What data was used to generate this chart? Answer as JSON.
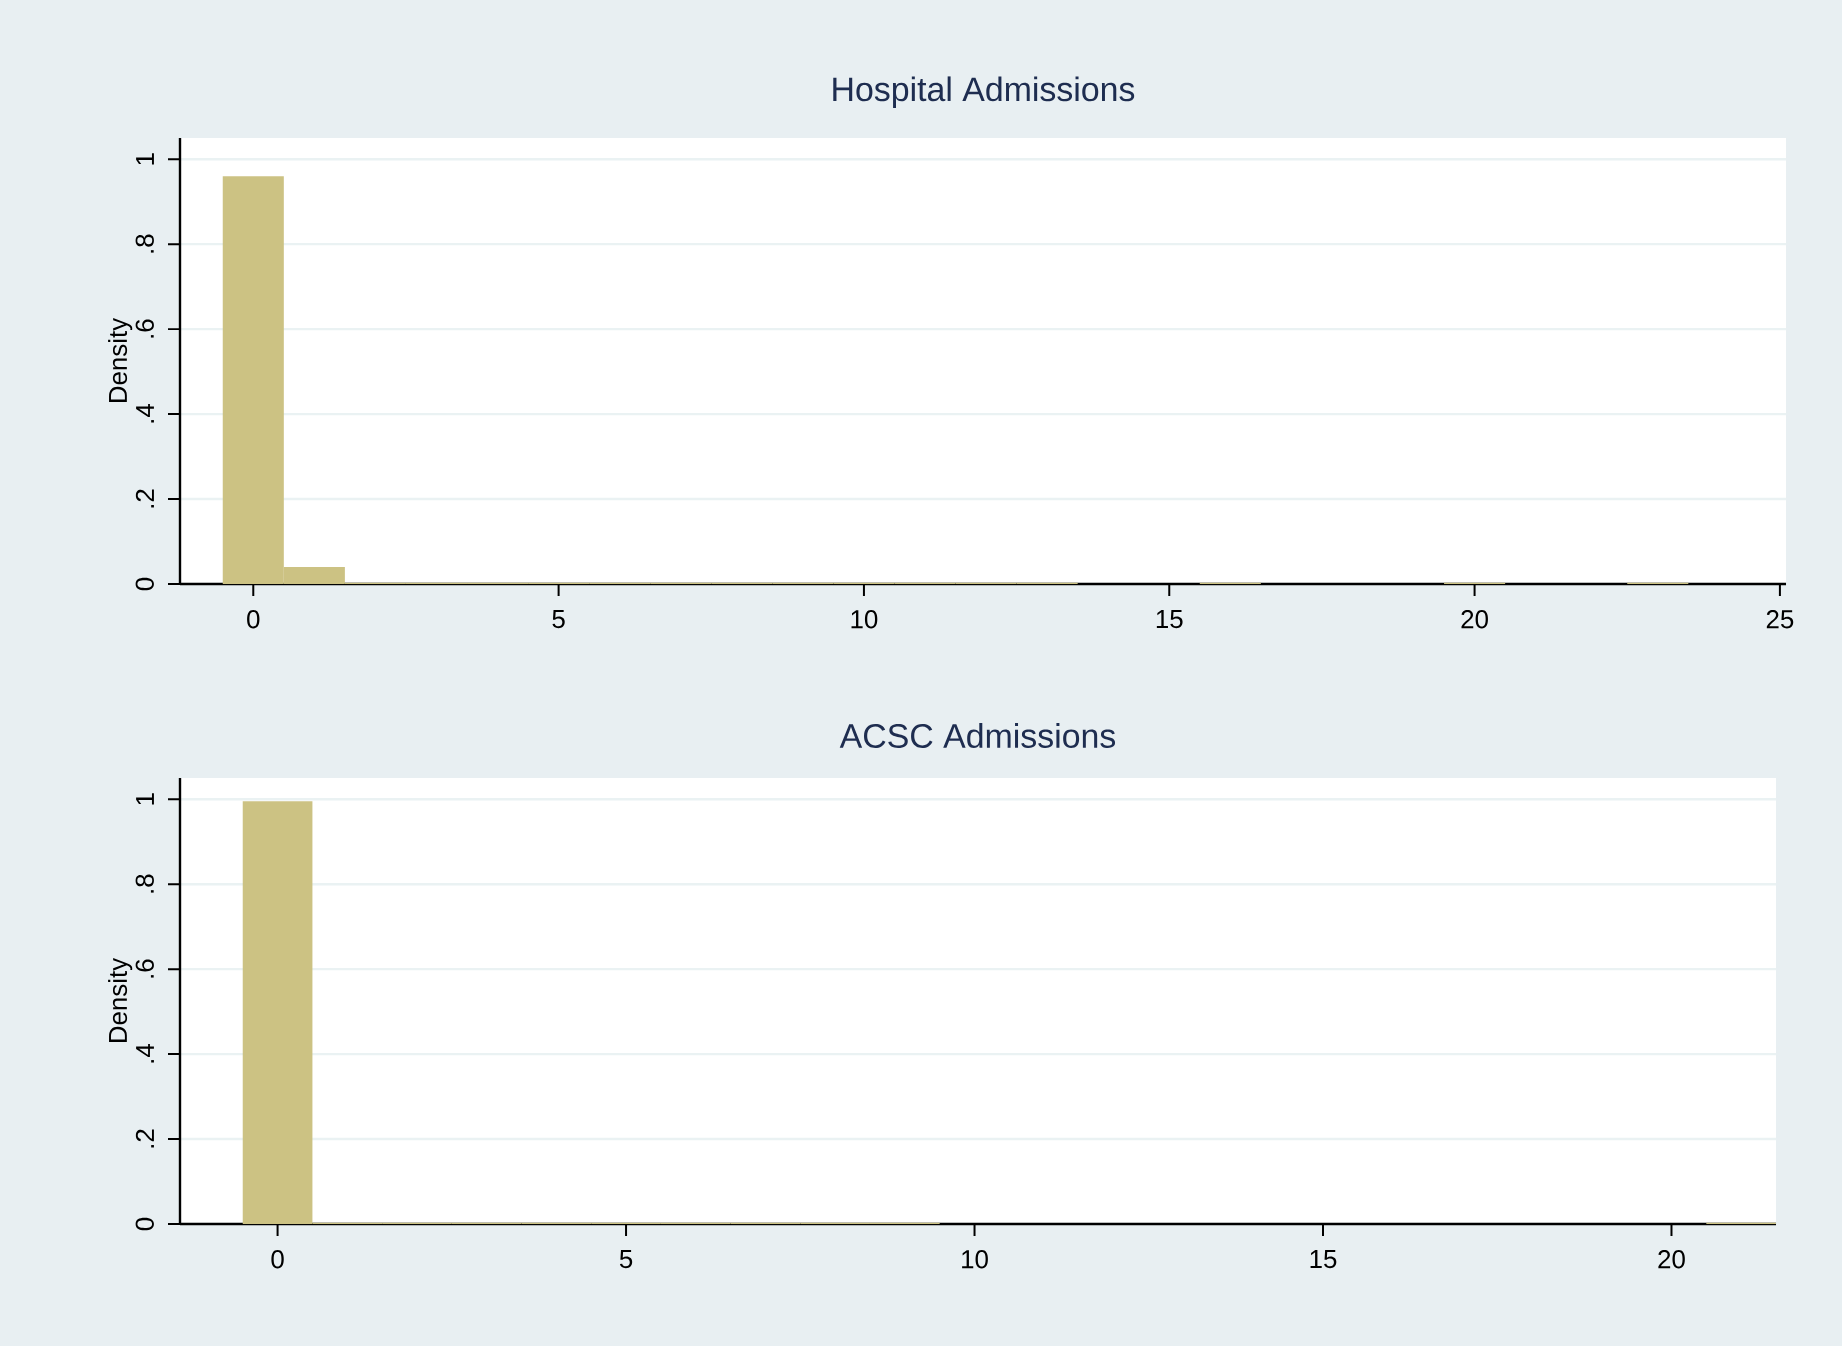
{
  "chart_data": [
    {
      "type": "histogram",
      "title": "Hospital Admissions",
      "ylabel": "Density",
      "color": "#ccc283",
      "grid": "y",
      "bins": [
        -0.5,
        0.5,
        1.5,
        2.5,
        3.5,
        4.5,
        5.5,
        6.5,
        7.5,
        8.5,
        9.5,
        10.5,
        11.5,
        12.5,
        13.5,
        14.5,
        15.5,
        16.5,
        17.5,
        18.5,
        19.5,
        20.5,
        21.5,
        22.5,
        23.5
      ],
      "values": [
        0.96,
        0.04,
        0.003,
        0.003,
        0.003,
        0.003,
        0.003,
        0.003,
        0.003,
        0.003,
        0.003,
        0.003,
        0.003,
        0.003,
        0,
        0,
        0.003,
        0,
        0,
        0,
        0.003,
        0,
        0,
        0.003
      ],
      "xlim": [
        -1.2,
        25.1
      ],
      "ylim": [
        0,
        1.05
      ],
      "xticks": [
        0,
        5,
        10,
        15,
        20,
        25
      ],
      "yticks": [
        0,
        {
          "value": 0.2,
          "label": ".2"
        },
        {
          "value": 0.4,
          "label": ".4"
        },
        {
          "value": 0.6,
          "label": ".6"
        },
        {
          "value": 0.8,
          "label": ".8"
        },
        1
      ]
    },
    {
      "type": "histogram",
      "title": "ACSC Admissions",
      "ylabel": "Density",
      "color": "#ccc283",
      "grid": "y",
      "bins": [
        -0.5,
        0.5,
        1.5,
        2.5,
        3.5,
        4.5,
        5.5,
        6.5,
        7.5,
        8.5,
        9.5,
        10.5,
        11.5,
        12.5,
        13.5,
        14.5,
        15.5,
        16.5,
        17.5,
        18.5,
        19.5,
        20.5,
        21.5
      ],
      "values": [
        0.995,
        0.003,
        0.003,
        0.003,
        0.003,
        0.003,
        0.003,
        0.003,
        0.003,
        0.003,
        0,
        0,
        0,
        0,
        0,
        0,
        0,
        0,
        0,
        0,
        0,
        0.003
      ],
      "xlim": [
        -1.4,
        21.5
      ],
      "ylim": [
        0,
        1.05
      ],
      "xticks": [
        0,
        5,
        10,
        15,
        20
      ],
      "yticks": [
        0,
        {
          "value": 0.2,
          "label": ".2"
        },
        {
          "value": 0.4,
          "label": ".4"
        },
        {
          "value": 0.6,
          "label": ".6"
        },
        {
          "value": 0.8,
          "label": ".8"
        },
        1
      ]
    }
  ]
}
